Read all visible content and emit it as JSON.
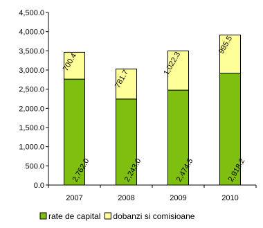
{
  "chart_data": {
    "type": "bar",
    "stacked": true,
    "categories": [
      "2007",
      "2008",
      "2009",
      "2010"
    ],
    "series": [
      {
        "name": "rate de capital",
        "values": [
          2762.0,
          2243.0,
          2474.5,
          2918.2
        ],
        "labels": [
          "2,762.0",
          "2,243.0",
          "2,474.5",
          "2,918.2"
        ],
        "color": "#7fbf0f"
      },
      {
        "name": "dobanzi si comisioane",
        "values": [
          700.4,
          781.7,
          1022.3,
          995.5
        ],
        "labels": [
          "700.4",
          "781.7",
          "1,022.3",
          "995.5"
        ],
        "color": "#ffff99"
      }
    ],
    "ylim": [
      0,
      4500
    ],
    "yticks": [
      "0.0",
      "500.0",
      "1,000.0",
      "1,500.0",
      "2,000.0",
      "2,500.0",
      "3,000.0",
      "3,500.0",
      "4,000.0",
      "4,500.0"
    ],
    "ytick_values": [
      0,
      500,
      1000,
      1500,
      2000,
      2500,
      3000,
      3500,
      4000,
      4500
    ],
    "title": "",
    "xlabel": "",
    "ylabel": "",
    "grid": false,
    "legend_position": "bottom"
  }
}
